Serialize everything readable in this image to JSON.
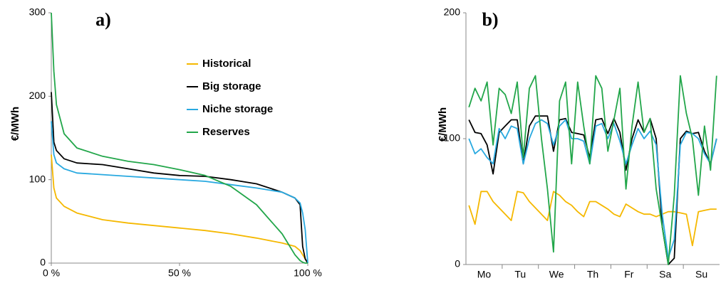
{
  "chart_data": [
    {
      "type": "line",
      "annotation": "a)",
      "ylabel": "€/MWh",
      "x": [
        0,
        1,
        2,
        5,
        10,
        20,
        30,
        40,
        50,
        60,
        70,
        80,
        90,
        95,
        97,
        98,
        99,
        100
      ],
      "xlim": [
        0,
        100
      ],
      "xticks": [
        {
          "value": 0,
          "label": "0 %"
        },
        {
          "value": 50,
          "label": "50 %"
        },
        {
          "value": 100,
          "label": "100 %"
        }
      ],
      "ylim": [
        0,
        300
      ],
      "yticks": [
        0,
        100,
        200,
        300
      ],
      "legend": "upper right",
      "series": [
        {
          "name": "Historical",
          "color": "#f5b800",
          "values": [
            130,
            90,
            78,
            68,
            60,
            52,
            48,
            45,
            42,
            39,
            35,
            30,
            24,
            20,
            15,
            10,
            5,
            0
          ]
        },
        {
          "name": "Big storage",
          "color": "#000000",
          "values": [
            205,
            145,
            135,
            125,
            120,
            118,
            113,
            108,
            105,
            104,
            100,
            95,
            85,
            78,
            70,
            20,
            5,
            0
          ]
        },
        {
          "name": "Niche storage",
          "color": "#29a9e0",
          "values": [
            170,
            130,
            120,
            113,
            108,
            106,
            104,
            102,
            100,
            98,
            94,
            90,
            85,
            78,
            72,
            60,
            40,
            0
          ]
        },
        {
          "name": "Reserves",
          "color": "#22a64a",
          "values": [
            300,
            230,
            190,
            155,
            138,
            128,
            122,
            118,
            112,
            105,
            92,
            70,
            35,
            10,
            3,
            1,
            0,
            0
          ]
        }
      ]
    },
    {
      "type": "line",
      "annotation": "b)",
      "ylabel": "€/MWh",
      "x": [
        2,
        6,
        10,
        14,
        18,
        22,
        26,
        30,
        34,
        38,
        42,
        46,
        50,
        54,
        58,
        62,
        66,
        70,
        74,
        78,
        82,
        86,
        90,
        94,
        98,
        102,
        106,
        110,
        114,
        118,
        122,
        126,
        130,
        134,
        138,
        142,
        146,
        150,
        154,
        158,
        162,
        166
      ],
      "xlim": [
        0,
        168
      ],
      "xticks": [
        {
          "value": 12,
          "label": "Mo"
        },
        {
          "value": 36,
          "label": "Tu"
        },
        {
          "value": 60,
          "label": "We"
        },
        {
          "value": 84,
          "label": "Th"
        },
        {
          "value": 108,
          "label": "Fr"
        },
        {
          "value": 132,
          "label": "Sa"
        },
        {
          "value": 156,
          "label": "Su"
        }
      ],
      "minor_xticks": [
        24,
        48,
        72,
        96,
        120,
        144
      ],
      "ylim": [
        0,
        200
      ],
      "yticks": [
        0,
        100,
        200
      ],
      "series": [
        {
          "color": "#f5b800",
          "values": [
            47,
            32,
            58,
            58,
            50,
            45,
            40,
            35,
            58,
            57,
            50,
            45,
            40,
            35,
            58,
            55,
            50,
            47,
            42,
            38,
            50,
            50,
            47,
            44,
            40,
            38,
            48,
            45,
            42,
            40,
            40,
            38,
            40,
            42,
            42,
            41,
            40,
            15,
            42,
            43,
            44,
            44
          ]
        },
        {
          "color": "#000000",
          "values": [
            115,
            105,
            104,
            95,
            72,
            105,
            110,
            115,
            115,
            80,
            110,
            118,
            118,
            118,
            90,
            115,
            116,
            105,
            104,
            103,
            85,
            115,
            116,
            104,
            116,
            105,
            75,
            100,
            115,
            105,
            116,
            100,
            30,
            0,
            5,
            100,
            106,
            104,
            105,
            90,
            80,
            100
          ]
        },
        {
          "color": "#29a9e0",
          "values": [
            100,
            88,
            92,
            85,
            80,
            108,
            100,
            110,
            108,
            80,
            100,
            112,
            115,
            112,
            95,
            110,
            115,
            100,
            100,
            98,
            80,
            110,
            112,
            100,
            112,
            98,
            80,
            95,
            108,
            100,
            106,
            95,
            40,
            5,
            20,
            95,
            105,
            104,
            100,
            88,
            80,
            100
          ]
        },
        {
          "color": "#22a64a",
          "values": [
            125,
            140,
            130,
            145,
            95,
            140,
            135,
            120,
            145,
            85,
            140,
            150,
            100,
            60,
            10,
            130,
            145,
            80,
            145,
            110,
            80,
            150,
            140,
            90,
            115,
            140,
            60,
            110,
            145,
            105,
            116,
            60,
            30,
            0,
            55,
            150,
            120,
            100,
            55,
            110,
            75,
            150
          ]
        }
      ]
    }
  ]
}
